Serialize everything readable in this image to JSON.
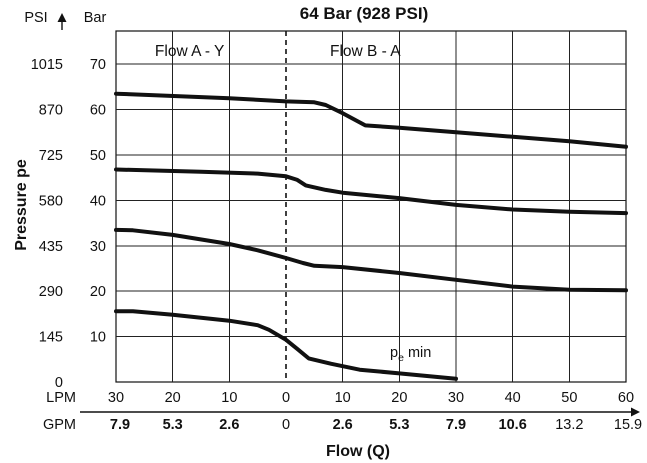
{
  "chart_data": {
    "type": "line",
    "title": "64 Bar (928 PSI)",
    "ylabel": "Pressure pe",
    "xlabel": "Flow (Q)",
    "y_units": {
      "psi": "PSI",
      "bar": "Bar"
    },
    "y_ticks_bar": [
      "10",
      "20",
      "30",
      "40",
      "50",
      "60",
      "70"
    ],
    "y_ticks_psi": [
      "0",
      "145",
      "290",
      "435",
      "580",
      "725",
      "870",
      "1015"
    ],
    "x_row_labels": {
      "lpm": "LPM",
      "gpm": "GPM"
    },
    "x_ticks_lpm": [
      "30",
      "20",
      "10",
      "0",
      "10",
      "20",
      "30",
      "40",
      "50",
      "60"
    ],
    "x_ticks_gpm": [
      "7.9",
      "5.3",
      "2.6",
      "0",
      "2.6",
      "5.3",
      "7.9",
      "10.6",
      "13.2",
      "15.9"
    ],
    "bold_gpm_ticks": [
      true,
      true,
      true,
      false,
      true,
      true,
      true,
      true,
      false,
      false
    ],
    "ylim_bar": [
      0,
      77.3
    ],
    "xlim": [
      -30,
      60
    ],
    "grid": true,
    "regions": [
      {
        "label": "Flow A - Y",
        "x": -17
      },
      {
        "label": "Flow B - A",
        "x": 14
      }
    ],
    "divider_x": 0,
    "annotation": {
      "base": "p",
      "sub": "e",
      "suffix": " min"
    },
    "series": [
      {
        "values": [
          [
            -30,
            63.5
          ],
          [
            -10,
            62.5
          ],
          [
            0,
            61.8
          ],
          [
            5,
            61.6
          ],
          [
            7,
            61
          ],
          [
            10,
            59.2
          ],
          [
            14,
            56.5
          ],
          [
            20,
            56
          ],
          [
            30,
            55
          ],
          [
            40,
            54
          ],
          [
            50,
            53
          ],
          [
            60,
            51.8
          ]
        ]
      },
      {
        "values": [
          [
            -30,
            46.8
          ],
          [
            -15,
            46.3
          ],
          [
            -5,
            45.9
          ],
          [
            0,
            45.3
          ],
          [
            2,
            44.5
          ],
          [
            3.5,
            43.3
          ],
          [
            7,
            42.3
          ],
          [
            10,
            41.7
          ],
          [
            20,
            40.5
          ],
          [
            30,
            39
          ],
          [
            40,
            38
          ],
          [
            50,
            37.5
          ],
          [
            60,
            37.2
          ]
        ]
      },
      {
        "values": [
          [
            -30,
            33.5
          ],
          [
            -27,
            33.4
          ],
          [
            -20,
            32.4
          ],
          [
            -10,
            30.4
          ],
          [
            -5,
            29
          ],
          [
            0,
            27.3
          ],
          [
            3,
            26.2
          ],
          [
            5,
            25.6
          ],
          [
            10,
            25.3
          ],
          [
            20,
            24
          ],
          [
            30,
            22.5
          ],
          [
            40,
            21
          ],
          [
            50,
            20.3
          ],
          [
            60,
            20.2
          ]
        ]
      },
      {
        "values": [
          [
            -30,
            15.6
          ],
          [
            -27,
            15.6
          ],
          [
            -20,
            14.8
          ],
          [
            -10,
            13.5
          ],
          [
            -5,
            12.5
          ],
          [
            -3,
            11.5
          ],
          [
            0,
            9.3
          ],
          [
            2,
            7.3
          ],
          [
            4,
            5.2
          ],
          [
            8,
            4
          ],
          [
            13,
            2.7
          ],
          [
            20,
            1.9
          ],
          [
            30,
            0.7
          ]
        ]
      }
    ]
  }
}
